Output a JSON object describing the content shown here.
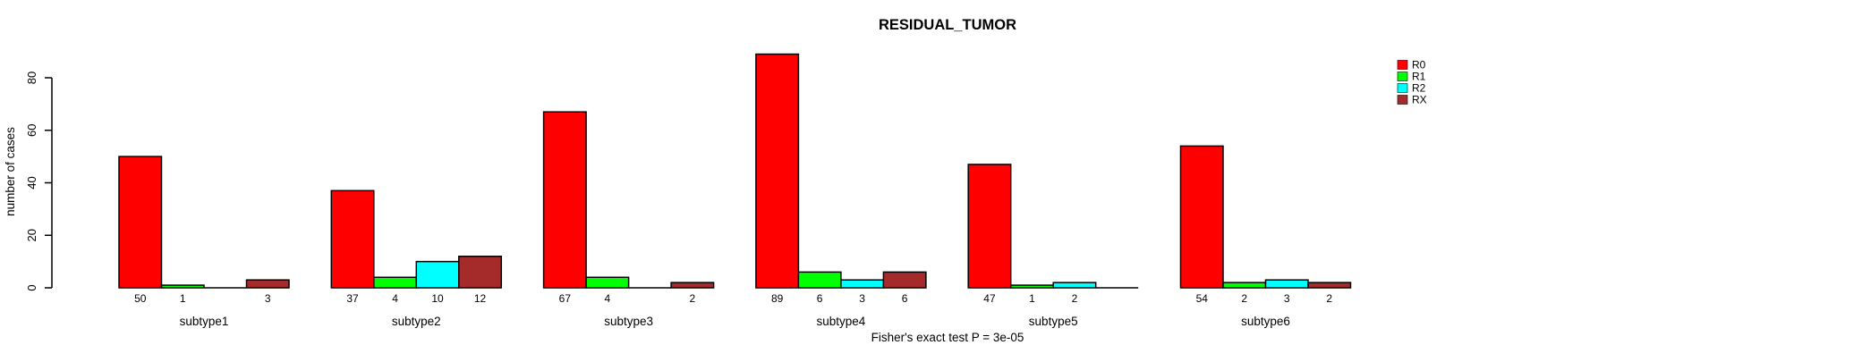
{
  "chart_data": {
    "type": "bar",
    "title": "RESIDUAL_TUMOR",
    "ylabel": "number of cases",
    "footer": "Fisher's exact test P = 3e-05",
    "categories": [
      "subtype1",
      "subtype2",
      "subtype3",
      "subtype4",
      "subtype5",
      "subtype6"
    ],
    "series": [
      {
        "name": "R0",
        "color": "#FF0000",
        "values": [
          50,
          37,
          67,
          89,
          47,
          54
        ]
      },
      {
        "name": "R1",
        "color": "#00FF00",
        "values": [
          1,
          4,
          4,
          6,
          1,
          2
        ]
      },
      {
        "name": "R2",
        "color": "#00FFFF",
        "values": [
          0,
          10,
          0,
          3,
          2,
          3
        ]
      },
      {
        "name": "RX",
        "color": "#A52A2A",
        "values": [
          3,
          12,
          2,
          6,
          0,
          2
        ]
      }
    ],
    "yticks": [
      0,
      20,
      40,
      60,
      80
    ],
    "ylim": [
      0,
      89
    ],
    "grid": false,
    "legend_position": "right",
    "bar_value_labels": "shown for non-zero bars",
    "axis_color": "#000000",
    "background_color": "#FFFFFF"
  }
}
